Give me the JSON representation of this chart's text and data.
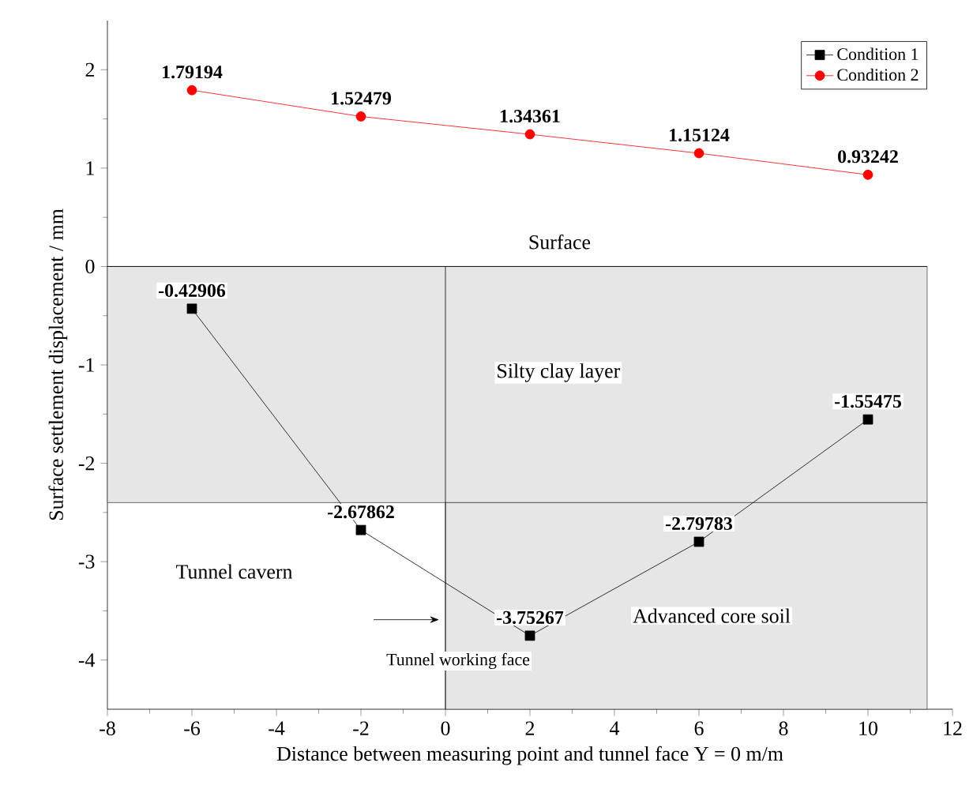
{
  "chart_data": {
    "type": "line",
    "xlabel": "Distance between measuring point and tunnel face Y = 0 m/m",
    "ylabel": "Surface settlement displacement / mm",
    "x": [
      -6,
      -2,
      2,
      6,
      10
    ],
    "series": [
      {
        "name": "Condition 1",
        "color": "#000000",
        "marker": "square",
        "values": [
          -0.42906,
          -2.67862,
          -3.75267,
          -2.79783,
          -1.55475
        ]
      },
      {
        "name": "Condition 2",
        "color": "#ff0000",
        "marker": "circle",
        "values": [
          1.79194,
          1.52479,
          1.34361,
          1.15124,
          0.93242
        ]
      }
    ],
    "xlim": [
      -8,
      12
    ],
    "xticks": [
      -8,
      -6,
      -4,
      -2,
      0,
      2,
      4,
      6,
      8,
      10,
      12
    ],
    "ylim": [
      -4.5,
      2.5
    ],
    "yticks": [
      -4,
      -3,
      -2,
      -1,
      0,
      1,
      2
    ],
    "data_labels": true,
    "legend": "top right",
    "grid": false,
    "line_style": "solid",
    "ref_lines": [
      {
        "axis": "y",
        "value": 0,
        "label": "Surface"
      },
      {
        "axis": "x",
        "value": 0,
        "label": "Tunnel working face"
      }
    ],
    "bands": [
      {
        "axis": "y",
        "from": -2.4,
        "to": 0,
        "label": "Silty clay layer",
        "color": "#e6e6e6"
      },
      {
        "axis": "x",
        "from": 0,
        "to": 11.4,
        "label": "Advanced core soil",
        "color": "#e6e6e6"
      }
    ],
    "annotations": [
      "Tunnel cavern"
    ]
  }
}
